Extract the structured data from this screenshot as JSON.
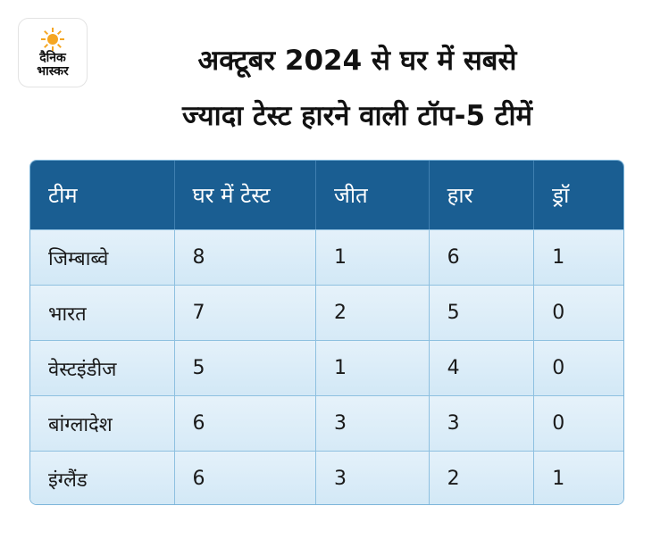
{
  "logo": {
    "line1": "दैनिक",
    "line2": "भास्कर",
    "sun_color": "#f5a623"
  },
  "title": {
    "line1": "अक्टूबर 2024 से घर में सबसे",
    "line2": "ज्यादा टेस्ट हारने वाली टॉप-5 टीमें"
  },
  "colors": {
    "header_bg": "#1a5e92",
    "row_bg": "#dcedf8",
    "border": "#8ec0e0"
  },
  "chart_data": {
    "type": "table",
    "title": "अक्टूबर 2024 से घर में सबसे ज्यादा टेस्ट हारने वाली टॉप-5 टीमें",
    "columns": [
      "टीम",
      "घर में टेस्ट",
      "जीत",
      "हार",
      "ड्रॉ"
    ],
    "rows": [
      [
        "जिम्बाब्वे",
        "8",
        "1",
        "6",
        "1"
      ],
      [
        "भारत",
        "7",
        "2",
        "5",
        "0"
      ],
      [
        "वेस्टइंडीज",
        "5",
        "1",
        "4",
        "0"
      ],
      [
        "बांग्लादेश",
        "6",
        "3",
        "3",
        "0"
      ],
      [
        "इंग्लैंड",
        "6",
        "3",
        "2",
        "1"
      ]
    ]
  }
}
